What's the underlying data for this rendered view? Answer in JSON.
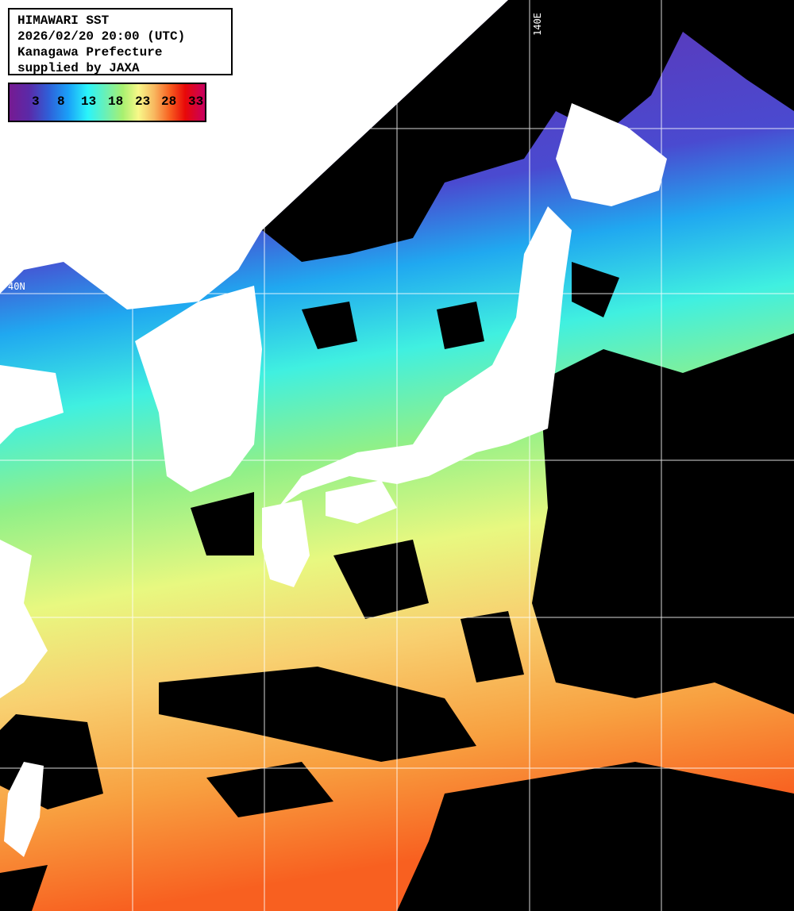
{
  "info": {
    "title": "HIMAWARI SST",
    "datetime": "2026/02/20 20:00 (UTC)",
    "region": "Kanagawa Prefecture",
    "credit": "supplied by JAXA"
  },
  "colorbar": {
    "unit_ticks": [
      "3",
      "8",
      "13",
      "18",
      "23",
      "28",
      "33"
    ],
    "colors": [
      "#761a92",
      "#2f5fd8",
      "#2af4fa",
      "#a8f070",
      "#f8f888",
      "#f86020",
      "#e80808",
      "#c80060"
    ]
  },
  "grid": {
    "lat_label": "40N",
    "lon_label": "140E"
  },
  "colors": {
    "land": "#ffffff",
    "cloud": "#000000",
    "grid": "#ffffff"
  }
}
